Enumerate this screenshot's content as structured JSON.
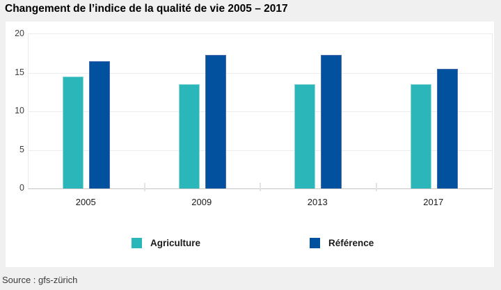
{
  "title": "Changement de l’indice de la qualité de vie 2005 – 2017",
  "source": "Source : gfs-zürich",
  "chart_data": {
    "type": "bar",
    "title": "Changement de l’indice de la qualité de vie 2005 – 2017",
    "categories": [
      "2005",
      "2009",
      "2013",
      "2017"
    ],
    "series": [
      {
        "name": "Agriculture",
        "color": "#2BB6BA",
        "border_color": "#8FD9DB",
        "values": [
          14.5,
          13.5,
          13.5,
          13.5
        ]
      },
      {
        "name": "Référence",
        "color": "#02519E",
        "border_color": "#4A6BB0",
        "values": [
          16.5,
          17.3,
          17.3,
          15.5
        ]
      }
    ],
    "xlabel": "",
    "ylabel": "",
    "ylim": [
      0,
      20
    ],
    "yticks": [
      0,
      5,
      10,
      15,
      20
    ],
    "grid": true,
    "legend_position": "bottom",
    "plot_background": "#ffffff",
    "page_background": "#f0f0f0",
    "gridline_color": "#ececec",
    "axis_line_color": "#c4c4c4"
  }
}
